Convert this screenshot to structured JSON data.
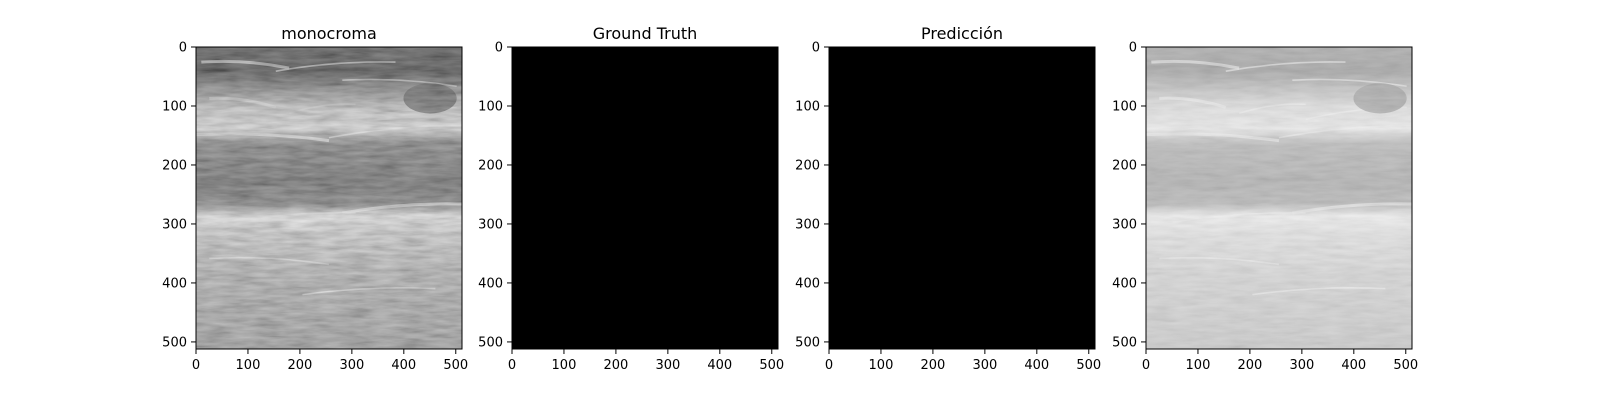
{
  "chart_data": [
    {
      "type": "heatmap",
      "image": "ultrasound-grayscale",
      "title": "monocroma",
      "xlim": [
        0,
        512
      ],
      "ylim": [
        512,
        0
      ],
      "xticks": [
        "0",
        "100",
        "200",
        "300",
        "400",
        "500"
      ],
      "yticks": [
        "0",
        "100",
        "200",
        "300",
        "400",
        "500"
      ],
      "grid": false,
      "colormap": "gray"
    },
    {
      "type": "heatmap",
      "image": "solid-black-mask",
      "title": "Ground Truth",
      "xlim": [
        0,
        512
      ],
      "ylim": [
        512,
        0
      ],
      "xticks": [
        "0",
        "100",
        "200",
        "300",
        "400",
        "500"
      ],
      "yticks": [
        "0",
        "100",
        "200",
        "300",
        "400",
        "500"
      ],
      "grid": false,
      "colormap": "gray"
    },
    {
      "type": "heatmap",
      "image": "solid-black-mask",
      "title": "Predicción",
      "xlim": [
        0,
        512
      ],
      "ylim": [
        512,
        0
      ],
      "xticks": [
        "0",
        "100",
        "200",
        "300",
        "400",
        "500"
      ],
      "yticks": [
        "0",
        "100",
        "200",
        "300",
        "400",
        "500"
      ],
      "grid": false,
      "colormap": "gray"
    },
    {
      "type": "heatmap",
      "image": "ultrasound-overlay-light",
      "title": "",
      "xlim": [
        0,
        512
      ],
      "ylim": [
        512,
        0
      ],
      "xticks": [
        "0",
        "100",
        "200",
        "300",
        "400",
        "500"
      ],
      "yticks": [
        "0",
        "100",
        "200",
        "300",
        "400",
        "500"
      ],
      "grid": false,
      "colormap": "gray"
    }
  ]
}
